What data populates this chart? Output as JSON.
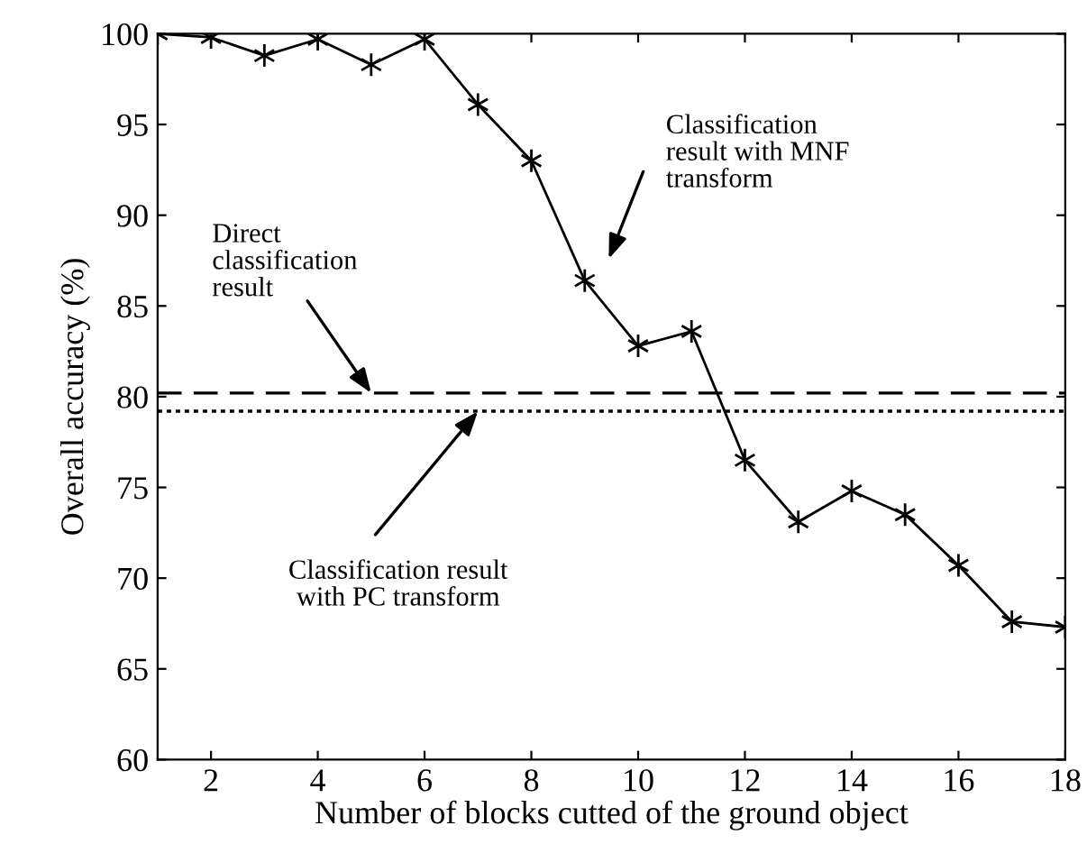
{
  "chart_data": {
    "type": "line",
    "xlabel": "Number of blocks cutted of the ground object",
    "ylabel": "Overall accuracy (%)",
    "x": [
      1,
      2,
      3,
      4,
      5,
      6,
      7,
      8,
      9,
      10,
      11,
      12,
      13,
      14,
      15,
      16,
      17,
      18
    ],
    "series": [
      {
        "color": "#000000",
        "values": [
          100,
          99.8,
          98.8,
          99.7,
          98.3,
          99.7,
          96.1,
          93.0,
          86.4,
          82.8,
          83.6,
          76.5,
          73.1,
          74.8,
          73.5,
          70.7,
          67.6,
          67.3
        ]
      }
    ],
    "marker": "cross",
    "line_style": "solid",
    "ref_lines": [
      {
        "axis": "y",
        "value": 80.2,
        "color": "#000000",
        "line_style": "dashed"
      },
      {
        "axis": "y",
        "value": 79.2,
        "color": "#000000",
        "line_style": "dotted"
      }
    ],
    "annotations": [
      {
        "text": "Direct\nclassification\nresult",
        "x": 5,
        "y": 80.2
      },
      "Classification\nresult with MNF\ntransform",
      {
        "text": "Classification result\nwith PC transform",
        "x": 7.0,
        "y": 79.2
      }
    ],
    "xlim": [
      1,
      18
    ],
    "ylim": [
      60,
      100
    ],
    "xticks": [
      2,
      4,
      6,
      8,
      10,
      12,
      14,
      16,
      18
    ],
    "yticks": [
      60,
      65,
      70,
      75,
      80,
      85,
      90,
      95,
      100
    ],
    "grid": false,
    "legend": false
  }
}
